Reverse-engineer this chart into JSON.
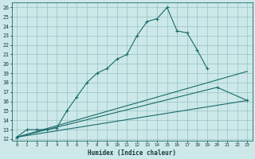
{
  "xlabel": "Humidex (Indice chaleur)",
  "bg_color": "#cce8e8",
  "line_color": "#1a6b6b",
  "xlim": [
    -0.5,
    23.5
  ],
  "ylim": [
    11.8,
    26.5
  ],
  "xticks": [
    0,
    1,
    2,
    3,
    4,
    5,
    6,
    7,
    8,
    9,
    10,
    11,
    12,
    13,
    14,
    15,
    16,
    17,
    18,
    19,
    20,
    21,
    22,
    23
  ],
  "yticks": [
    12,
    13,
    14,
    15,
    16,
    17,
    18,
    19,
    20,
    21,
    22,
    23,
    24,
    25,
    26
  ],
  "lines": [
    {
      "x": [
        0,
        1,
        2,
        3,
        4,
        5,
        6,
        7,
        8,
        9,
        10,
        11,
        12,
        13,
        14,
        15,
        16,
        17,
        18,
        19
      ],
      "y": [
        12.2,
        13.0,
        13.0,
        13.0,
        13.2,
        15.0,
        16.5,
        18.0,
        19.0,
        19.5,
        20.5,
        21.0,
        23.0,
        24.5,
        24.8,
        26.0,
        23.5,
        23.3,
        21.5,
        19.5
      ],
      "has_markers": true
    },
    {
      "x": [
        0,
        23
      ],
      "y": [
        12.2,
        19.2
      ],
      "has_markers": false
    },
    {
      "x": [
        0,
        23
      ],
      "y": [
        12.2,
        16.1
      ],
      "has_markers": false
    },
    {
      "x": [
        0,
        20,
        23
      ],
      "y": [
        12.2,
        17.5,
        16.1
      ],
      "has_markers": true
    }
  ]
}
